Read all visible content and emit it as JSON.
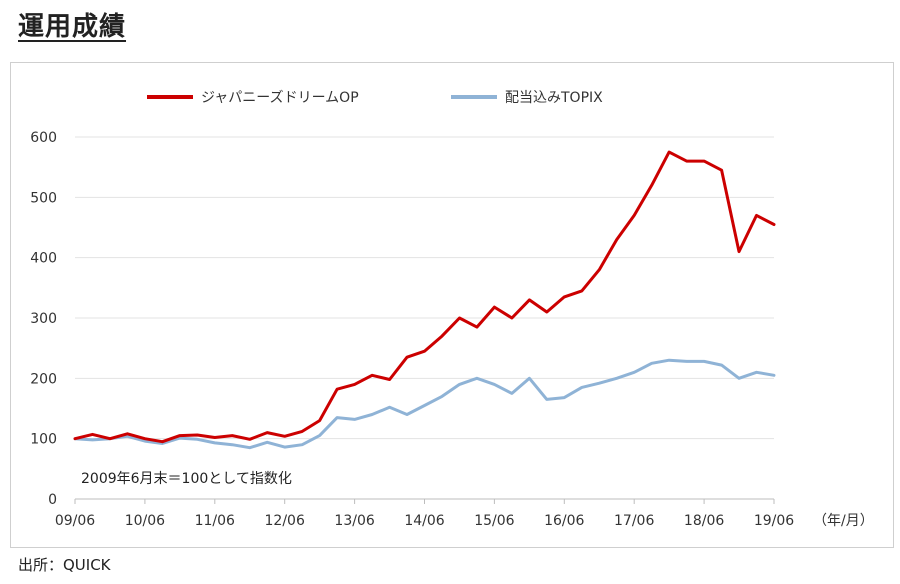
{
  "page_title": "運用成績",
  "source": "出所：QUICK",
  "chart_data": {
    "type": "line",
    "title": "",
    "xlabel": "",
    "ylabel": "",
    "x_unit_label": "（年/月）",
    "note": "2009年6月末＝100として指数化",
    "ylim": [
      0,
      600
    ],
    "yticks": [
      0,
      100,
      200,
      300,
      400,
      500,
      600
    ],
    "xlim": [
      "2009-06",
      "2019-06"
    ],
    "xticks": [
      "09/06",
      "10/06",
      "11/06",
      "12/06",
      "13/06",
      "14/06",
      "15/06",
      "16/06",
      "17/06",
      "18/06",
      "19/06"
    ],
    "grid": "horizontal",
    "legend_position": "top",
    "x": [
      "2009-06",
      "2009-09",
      "2009-12",
      "2010-03",
      "2010-06",
      "2010-09",
      "2010-12",
      "2011-03",
      "2011-06",
      "2011-09",
      "2011-12",
      "2012-03",
      "2012-06",
      "2012-09",
      "2012-12",
      "2013-03",
      "2013-06",
      "2013-09",
      "2013-12",
      "2014-03",
      "2014-06",
      "2014-09",
      "2014-12",
      "2015-03",
      "2015-06",
      "2015-09",
      "2015-12",
      "2016-03",
      "2016-06",
      "2016-09",
      "2016-12",
      "2017-03",
      "2017-06",
      "2017-09",
      "2017-12",
      "2018-03",
      "2018-06",
      "2018-09",
      "2018-12",
      "2019-03",
      "2019-06"
    ],
    "series": [
      {
        "name": "ジャパニーズドリームOP",
        "color": "#cc0000",
        "values": [
          100,
          107,
          100,
          108,
          100,
          95,
          105,
          106,
          102,
          105,
          99,
          110,
          104,
          112,
          130,
          182,
          190,
          205,
          198,
          235,
          245,
          270,
          300,
          285,
          318,
          300,
          330,
          310,
          335,
          345,
          380,
          430,
          470,
          520,
          575,
          560,
          560,
          545,
          410,
          470,
          455
        ]
      },
      {
        "name": "配当込みTOPIX",
        "color": "#8fb3d6",
        "values": [
          100,
          98,
          100,
          104,
          96,
          92,
          101,
          99,
          93,
          90,
          85,
          94,
          86,
          90,
          105,
          135,
          132,
          140,
          152,
          140,
          155,
          170,
          190,
          200,
          190,
          175,
          200,
          165,
          168,
          185,
          192,
          200,
          210,
          225,
          230,
          228,
          228,
          222,
          200,
          210,
          205
        ]
      }
    ]
  }
}
